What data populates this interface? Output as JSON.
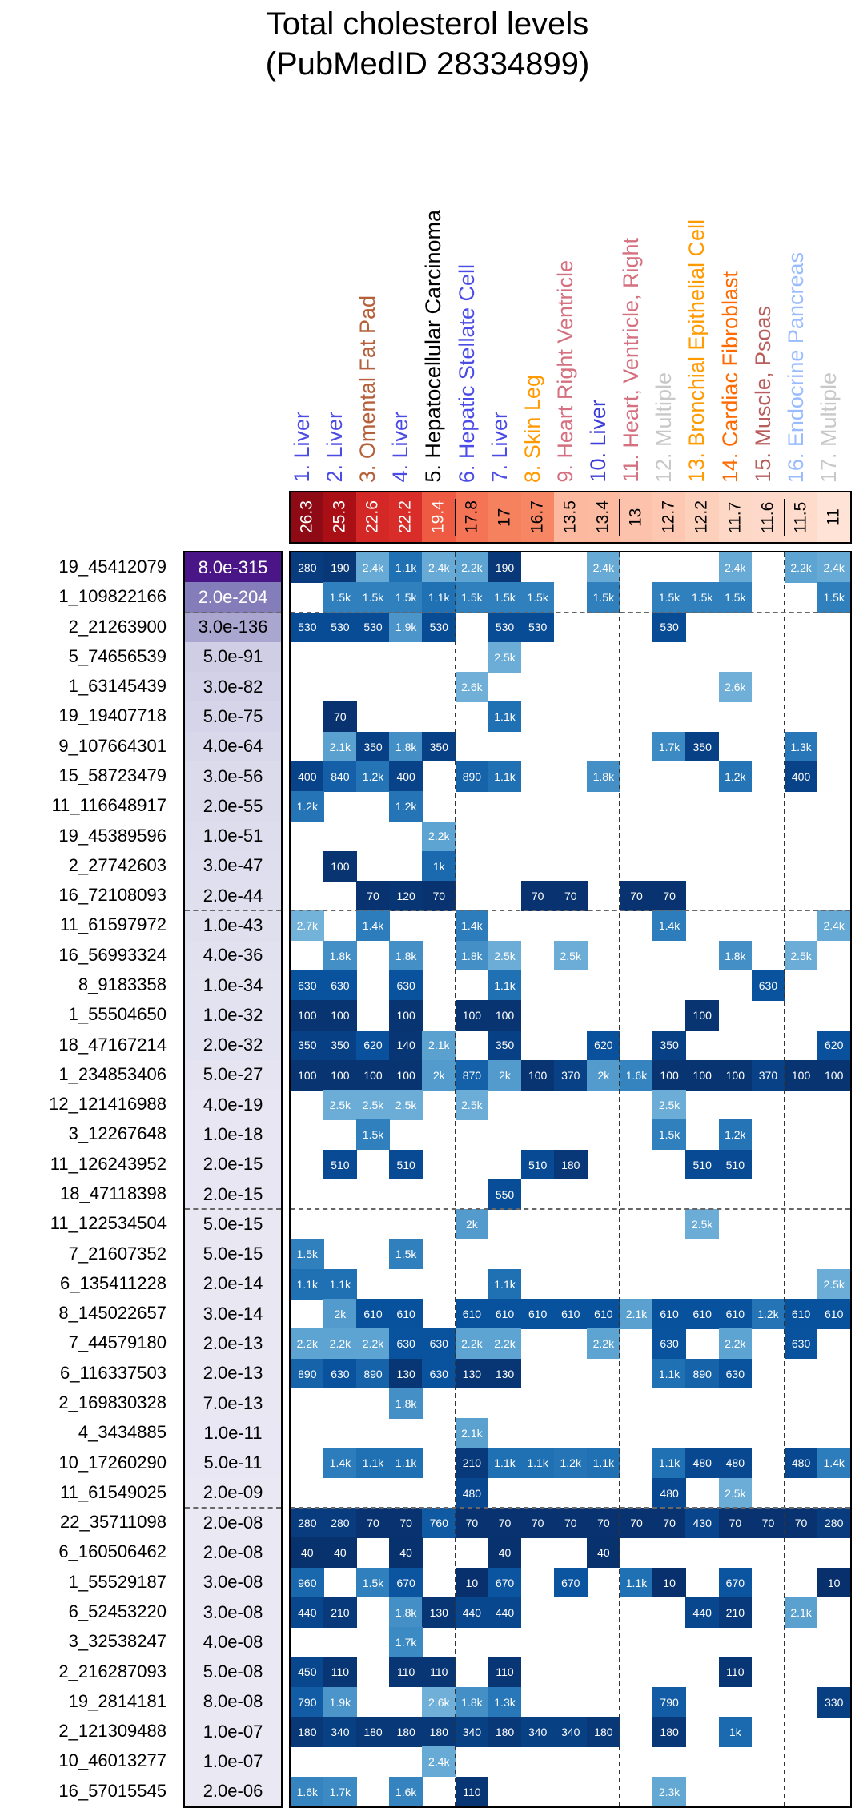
{
  "chart_data": {
    "type": "heatmap",
    "title": "Total cholesterol levels",
    "subtitle": "(PubMedID 28334899)",
    "columns": [
      {
        "label": "1. Liver",
        "value": "26.3",
        "color": "#4b4be6"
      },
      {
        "label": "2. Liver",
        "value": "25.3",
        "color": "#4b4be6"
      },
      {
        "label": "3. Omental Fat Pad",
        "value": "22.6",
        "color": "#b5603a"
      },
      {
        "label": "4. Liver",
        "value": "22.2",
        "color": "#4b4be6"
      },
      {
        "label": "5. Hepatocellular Carcinoma",
        "value": "19.4",
        "color": "#000000"
      },
      {
        "label": "6. Hepatic Stellate Cell",
        "value": "17.8",
        "color": "#4b4be6"
      },
      {
        "label": "7. Liver",
        "value": "17",
        "color": "#4b4be6"
      },
      {
        "label": "8. Skin Leg",
        "value": "16.7",
        "color": "#ff9a00"
      },
      {
        "label": "9. Heart Right Ventricle",
        "value": "13.5",
        "color": "#d4707f"
      },
      {
        "label": "10. Liver",
        "value": "13.4",
        "color": "#3c3cd8"
      },
      {
        "label": "11. Heart, Ventricle, Right",
        "value": "13",
        "color": "#d4707f"
      },
      {
        "label": "12. Multiple",
        "value": "12.7",
        "color": "#c8c8c8"
      },
      {
        "label": "13. Bronchial Epithelial Cell",
        "value": "12.2",
        "color": "#ff9a00"
      },
      {
        "label": "14. Cardiac Fibroblast",
        "value": "11.7",
        "color": "#ff6a00"
      },
      {
        "label": "15. Muscle, Psoas",
        "value": "11.6",
        "color": "#b85c5c"
      },
      {
        "label": "16. Endocrine Pancreas",
        "value": "11.5",
        "color": "#99bbff"
      },
      {
        "label": "17. Multiple",
        "value": "11",
        "color": "#c8c8c8"
      }
    ],
    "rows": [
      {
        "label": "19_45412079",
        "p": "8.0e-315",
        "cells": [
          "280",
          "190",
          "2.4k",
          "1.1k",
          "2.4k",
          "2.2k",
          "190",
          "",
          "",
          "2.4k",
          "",
          "",
          "",
          "2.4k",
          "",
          "2.2k",
          "2.4k"
        ]
      },
      {
        "label": "1_109822166",
        "p": "2.0e-204",
        "cells": [
          "",
          "1.5k",
          "1.5k",
          "1.5k",
          "1.1k",
          "1.5k",
          "1.5k",
          "1.5k",
          "",
          "1.5k",
          "",
          "1.5k",
          "1.5k",
          "1.5k",
          "",
          "",
          "1.5k"
        ]
      },
      {
        "label": "2_21263900",
        "p": "3.0e-136",
        "cells": [
          "530",
          "530",
          "530",
          "1.9k",
          "530",
          "",
          "530",
          "530",
          "",
          "",
          "",
          "530",
          "",
          "",
          "",
          "",
          ""
        ]
      },
      {
        "label": "5_74656539",
        "p": "5.0e-91",
        "cells": [
          "",
          "",
          "",
          "",
          "",
          "",
          "2.5k",
          "",
          "",
          "",
          "",
          "",
          "",
          "",
          "",
          "",
          ""
        ]
      },
      {
        "label": "1_63145439",
        "p": "3.0e-82",
        "cells": [
          "",
          "",
          "",
          "",
          "",
          "2.6k",
          "",
          "",
          "",
          "",
          "",
          "",
          "",
          "2.6k",
          "",
          "",
          ""
        ]
      },
      {
        "label": "19_19407718",
        "p": "5.0e-75",
        "cells": [
          "",
          "70",
          "",
          "",
          "",
          "",
          "1.1k",
          "",
          "",
          "",
          "",
          "",
          "",
          "",
          "",
          "",
          ""
        ]
      },
      {
        "label": "9_107664301",
        "p": "4.0e-64",
        "cells": [
          "",
          "2.1k",
          "350",
          "1.8k",
          "350",
          "",
          "",
          "",
          "",
          "",
          "",
          "1.7k",
          "350",
          "",
          "",
          "1.3k",
          ""
        ]
      },
      {
        "label": "15_58723479",
        "p": "3.0e-56",
        "cells": [
          "400",
          "840",
          "1.2k",
          "400",
          "",
          "890",
          "1.1k",
          "",
          "",
          "1.8k",
          "",
          "",
          "",
          "1.2k",
          "",
          "400",
          ""
        ]
      },
      {
        "label": "11_116648917",
        "p": "2.0e-55",
        "cells": [
          "1.2k",
          "",
          "",
          "1.2k",
          "",
          "",
          "",
          "",
          "",
          "",
          "",
          "",
          "",
          "",
          "",
          "",
          ""
        ]
      },
      {
        "label": "19_45389596",
        "p": "1.0e-51",
        "cells": [
          "",
          "",
          "",
          "",
          "2.2k",
          "",
          "",
          "",
          "",
          "",
          "",
          "",
          "",
          "",
          "",
          "",
          ""
        ]
      },
      {
        "label": "2_27742603",
        "p": "3.0e-47",
        "cells": [
          "",
          "100",
          "",
          "",
          "1k",
          "",
          "",
          "",
          "",
          "",
          "",
          "",
          "",
          "",
          "",
          "",
          ""
        ]
      },
      {
        "label": "16_72108093",
        "p": "2.0e-44",
        "cells": [
          "",
          "",
          "70",
          "120",
          "70",
          "",
          "",
          "70",
          "70",
          "",
          "70",
          "70",
          "",
          "",
          "",
          "",
          ""
        ]
      },
      {
        "label": "11_61597972",
        "p": "1.0e-43",
        "cells": [
          "2.7k",
          "",
          "1.4k",
          "",
          "",
          "1.4k",
          "",
          "",
          "",
          "",
          "",
          "1.4k",
          "",
          "",
          "",
          "",
          "2.4k"
        ]
      },
      {
        "label": "16_56993324",
        "p": "4.0e-36",
        "cells": [
          "",
          "1.8k",
          "",
          "1.8k",
          "",
          "1.8k",
          "2.5k",
          "",
          "2.5k",
          "",
          "",
          "",
          "",
          "1.8k",
          "",
          "2.5k",
          ""
        ]
      },
      {
        "label": "8_9183358",
        "p": "1.0e-34",
        "cells": [
          "630",
          "630",
          "",
          "630",
          "",
          "",
          "1.1k",
          "",
          "",
          "",
          "",
          "",
          "",
          "",
          "630",
          "",
          ""
        ]
      },
      {
        "label": "1_55504650",
        "p": "1.0e-32",
        "cells": [
          "100",
          "100",
          "",
          "100",
          "",
          "100",
          "100",
          "",
          "",
          "",
          "",
          "",
          "100",
          "",
          "",
          "",
          ""
        ]
      },
      {
        "label": "18_47167214",
        "p": "2.0e-32",
        "cells": [
          "350",
          "350",
          "620",
          "140",
          "2.1k",
          "",
          "350",
          "",
          "",
          "620",
          "",
          "350",
          "",
          "",
          "",
          "",
          "620"
        ]
      },
      {
        "label": "1_234853406",
        "p": "5.0e-27",
        "cells": [
          "100",
          "100",
          "100",
          "100",
          "2k",
          "870",
          "2k",
          "100",
          "370",
          "2k",
          "1.6k",
          "100",
          "100",
          "100",
          "370",
          "100",
          "100"
        ]
      },
      {
        "label": "12_121416988",
        "p": "4.0e-19",
        "cells": [
          "",
          "2.5k",
          "2.5k",
          "2.5k",
          "",
          "2.5k",
          "",
          "",
          "",
          "",
          "",
          "2.5k",
          "",
          "",
          "",
          "",
          ""
        ]
      },
      {
        "label": "3_12267648",
        "p": "1.0e-18",
        "cells": [
          "",
          "",
          "1.5k",
          "",
          "",
          "",
          "",
          "",
          "",
          "",
          "",
          "1.5k",
          "",
          "1.2k",
          "",
          "",
          ""
        ]
      },
      {
        "label": "11_126243952",
        "p": "2.0e-15",
        "cells": [
          "",
          "510",
          "",
          "510",
          "",
          "",
          "",
          "510",
          "180",
          "",
          "",
          "",
          "510",
          "510",
          "",
          "",
          ""
        ]
      },
      {
        "label": "18_47118398",
        "p": "2.0e-15",
        "cells": [
          "",
          "",
          "",
          "",
          "",
          "",
          "550",
          "",
          "",
          "",
          "",
          "",
          "",
          "",
          "",
          "",
          ""
        ]
      },
      {
        "label": "11_122534504",
        "p": "5.0e-15",
        "cells": [
          "",
          "",
          "",
          "",
          "",
          "2k",
          "",
          "",
          "",
          "",
          "",
          "",
          "2.5k",
          "",
          "",
          "",
          ""
        ]
      },
      {
        "label": "7_21607352",
        "p": "5.0e-15",
        "cells": [
          "1.5k",
          "",
          "",
          "1.5k",
          "",
          "",
          "",
          "",
          "",
          "",
          "",
          "",
          "",
          "",
          "",
          "",
          ""
        ]
      },
      {
        "label": "6_135411228",
        "p": "2.0e-14",
        "cells": [
          "1.1k",
          "1.1k",
          "",
          "",
          "",
          "",
          "1.1k",
          "",
          "",
          "",
          "",
          "",
          "",
          "",
          "",
          "",
          "2.5k"
        ]
      },
      {
        "label": "8_145022657",
        "p": "3.0e-14",
        "cells": [
          "",
          "2k",
          "610",
          "610",
          "",
          "610",
          "610",
          "610",
          "610",
          "610",
          "2.1k",
          "610",
          "610",
          "610",
          "1.2k",
          "610",
          "610"
        ]
      },
      {
        "label": "7_44579180",
        "p": "2.0e-13",
        "cells": [
          "2.2k",
          "2.2k",
          "2.2k",
          "630",
          "630",
          "2.2k",
          "2.2k",
          "",
          "",
          "2.2k",
          "",
          "630",
          "",
          "2.2k",
          "",
          "630",
          ""
        ]
      },
      {
        "label": "6_116337503",
        "p": "2.0e-13",
        "cells": [
          "890",
          "630",
          "890",
          "130",
          "630",
          "130",
          "130",
          "",
          "",
          "",
          "",
          "1.1k",
          "890",
          "630",
          "",
          "",
          ""
        ]
      },
      {
        "label": "2_169830328",
        "p": "7.0e-13",
        "cells": [
          "",
          "",
          "",
          "1.8k",
          "",
          "",
          "",
          "",
          "",
          "",
          "",
          "",
          "",
          "",
          "",
          "",
          ""
        ]
      },
      {
        "label": "4_3434885",
        "p": "1.0e-11",
        "cells": [
          "",
          "",
          "",
          "",
          "",
          "2.1k",
          "",
          "",
          "",
          "",
          "",
          "",
          "",
          "",
          "",
          "",
          ""
        ]
      },
      {
        "label": "10_17260290",
        "p": "5.0e-11",
        "cells": [
          "",
          "1.4k",
          "1.1k",
          "1.1k",
          "",
          "210",
          "1.1k",
          "1.1k",
          "1.2k",
          "1.1k",
          "",
          "1.1k",
          "480",
          "480",
          "",
          "480",
          "1.4k"
        ]
      },
      {
        "label": "11_61549025",
        "p": "2.0e-09",
        "cells": [
          "",
          "",
          "",
          "",
          "",
          "480",
          "",
          "",
          "",
          "",
          "",
          "480",
          "",
          "2.5k",
          "",
          "",
          ""
        ]
      },
      {
        "label": "22_35711098",
        "p": "2.0e-08",
        "cells": [
          "280",
          "280",
          "70",
          "70",
          "760",
          "70",
          "70",
          "70",
          "70",
          "70",
          "70",
          "70",
          "430",
          "70",
          "70",
          "70",
          "280"
        ]
      },
      {
        "label": "6_160506462",
        "p": "2.0e-08",
        "cells": [
          "40",
          "40",
          "",
          "40",
          "",
          "",
          "40",
          "",
          "",
          "40",
          "",
          "",
          "",
          "",
          "",
          "",
          ""
        ]
      },
      {
        "label": "1_55529187",
        "p": "3.0e-08",
        "cells": [
          "960",
          "",
          "1.5k",
          "670",
          "",
          "10",
          "670",
          "",
          "670",
          "",
          "1.1k",
          "10",
          "",
          "670",
          "",
          "",
          "10"
        ]
      },
      {
        "label": "6_52453220",
        "p": "3.0e-08",
        "cells": [
          "440",
          "210",
          "",
          "1.8k",
          "130",
          "440",
          "440",
          "",
          "",
          "",
          "",
          "",
          "440",
          "210",
          "",
          "2.1k",
          ""
        ]
      },
      {
        "label": "3_32538247",
        "p": "4.0e-08",
        "cells": [
          "",
          "",
          "",
          "1.7k",
          "",
          "",
          "",
          "",
          "",
          "",
          "",
          "",
          "",
          "",
          "",
          "",
          ""
        ]
      },
      {
        "label": "2_216287093",
        "p": "5.0e-08",
        "cells": [
          "450",
          "110",
          "",
          "110",
          "110",
          "",
          "110",
          "",
          "",
          "",
          "",
          "",
          "",
          "110",
          "",
          "",
          ""
        ]
      },
      {
        "label": "19_2814181",
        "p": "8.0e-08",
        "cells": [
          "790",
          "1.9k",
          "",
          "",
          "2.6k",
          "1.8k",
          "1.3k",
          "",
          "",
          "",
          "",
          "790",
          "",
          "",
          "",
          "",
          "330"
        ]
      },
      {
        "label": "2_121309488",
        "p": "1.0e-07",
        "cells": [
          "180",
          "340",
          "180",
          "180",
          "180",
          "340",
          "180",
          "340",
          "340",
          "180",
          "",
          "180",
          "",
          "1k",
          "",
          "",
          ""
        ]
      },
      {
        "label": "10_46013277",
        "p": "1.0e-07",
        "cells": [
          "",
          "",
          "",
          "",
          "2.4k",
          "",
          "",
          "",
          "",
          "",
          "",
          "",
          "",
          "",
          "",
          "",
          ""
        ]
      },
      {
        "label": "16_57015545",
        "p": "2.0e-06",
        "cells": [
          "1.6k",
          "1.7k",
          "",
          "1.6k",
          "",
          "110",
          "",
          "",
          "",
          "",
          "",
          "2.3k",
          "",
          "",
          "",
          "",
          ""
        ]
      }
    ],
    "column_groups_after": [
      5,
      10,
      15
    ],
    "row_groups_after": [
      2,
      12,
      22,
      32
    ]
  }
}
